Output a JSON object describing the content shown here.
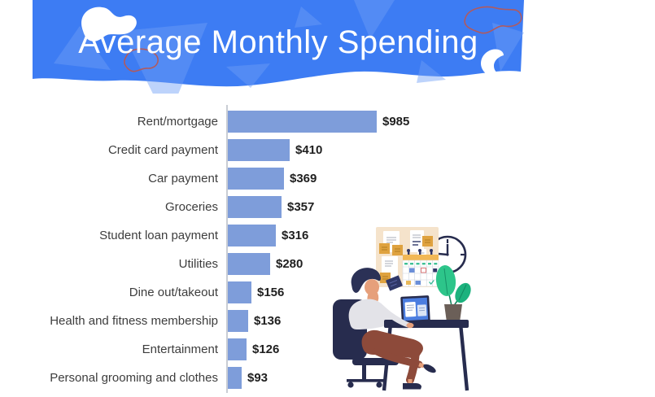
{
  "header": {
    "title": "Average Monthly Spending",
    "banner_color": "#3d7cf3",
    "triangle_color": "#5f93f6",
    "blob_outline_color": "#b15a5e",
    "title_color": "#ffffff"
  },
  "chart_data": {
    "type": "bar",
    "orientation": "horizontal",
    "title": "Average Monthly Spending",
    "categories": [
      "Rent/mortgage",
      "Credit card payment",
      "Car payment",
      "Groceries",
      "Student loan payment",
      "Utilities",
      "Dine out/takeout",
      "Health and fitness membership",
      "Entertainment",
      "Personal grooming and clothes"
    ],
    "values": [
      985,
      410,
      369,
      357,
      316,
      280,
      156,
      136,
      126,
      93
    ],
    "value_labels": [
      "$985",
      "$410",
      "$369",
      "$357",
      "$316",
      "$280",
      "$156",
      "$136",
      "$126",
      "$93"
    ],
    "xlabel": "",
    "ylabel": "",
    "xlim": [
      0,
      1080
    ],
    "grid": false,
    "legend": false,
    "bar_color": "#7e9dda",
    "axis_color": "#c9cdd4",
    "label_color": "#3d3d3d",
    "value_color": "#1f1f1f"
  },
  "illustration": {
    "description": "person sitting on office chair at desk with laptop, wall planner board with notes and calendar, clock and potted plant",
    "colors": {
      "navy": "#272c4e",
      "skin": "#e6a07b",
      "shirt": "#e3e3e8",
      "pants": "#8d4a3a",
      "board": "#f5e3cb",
      "sticky_note": "#dfa23f",
      "calendar_header": "#f2b855",
      "leaf_green": "#2dc58a",
      "leaf_green_dark": "#1cb27e",
      "pot": "#6b5f58",
      "screen_blue": "#4b7de0"
    }
  }
}
